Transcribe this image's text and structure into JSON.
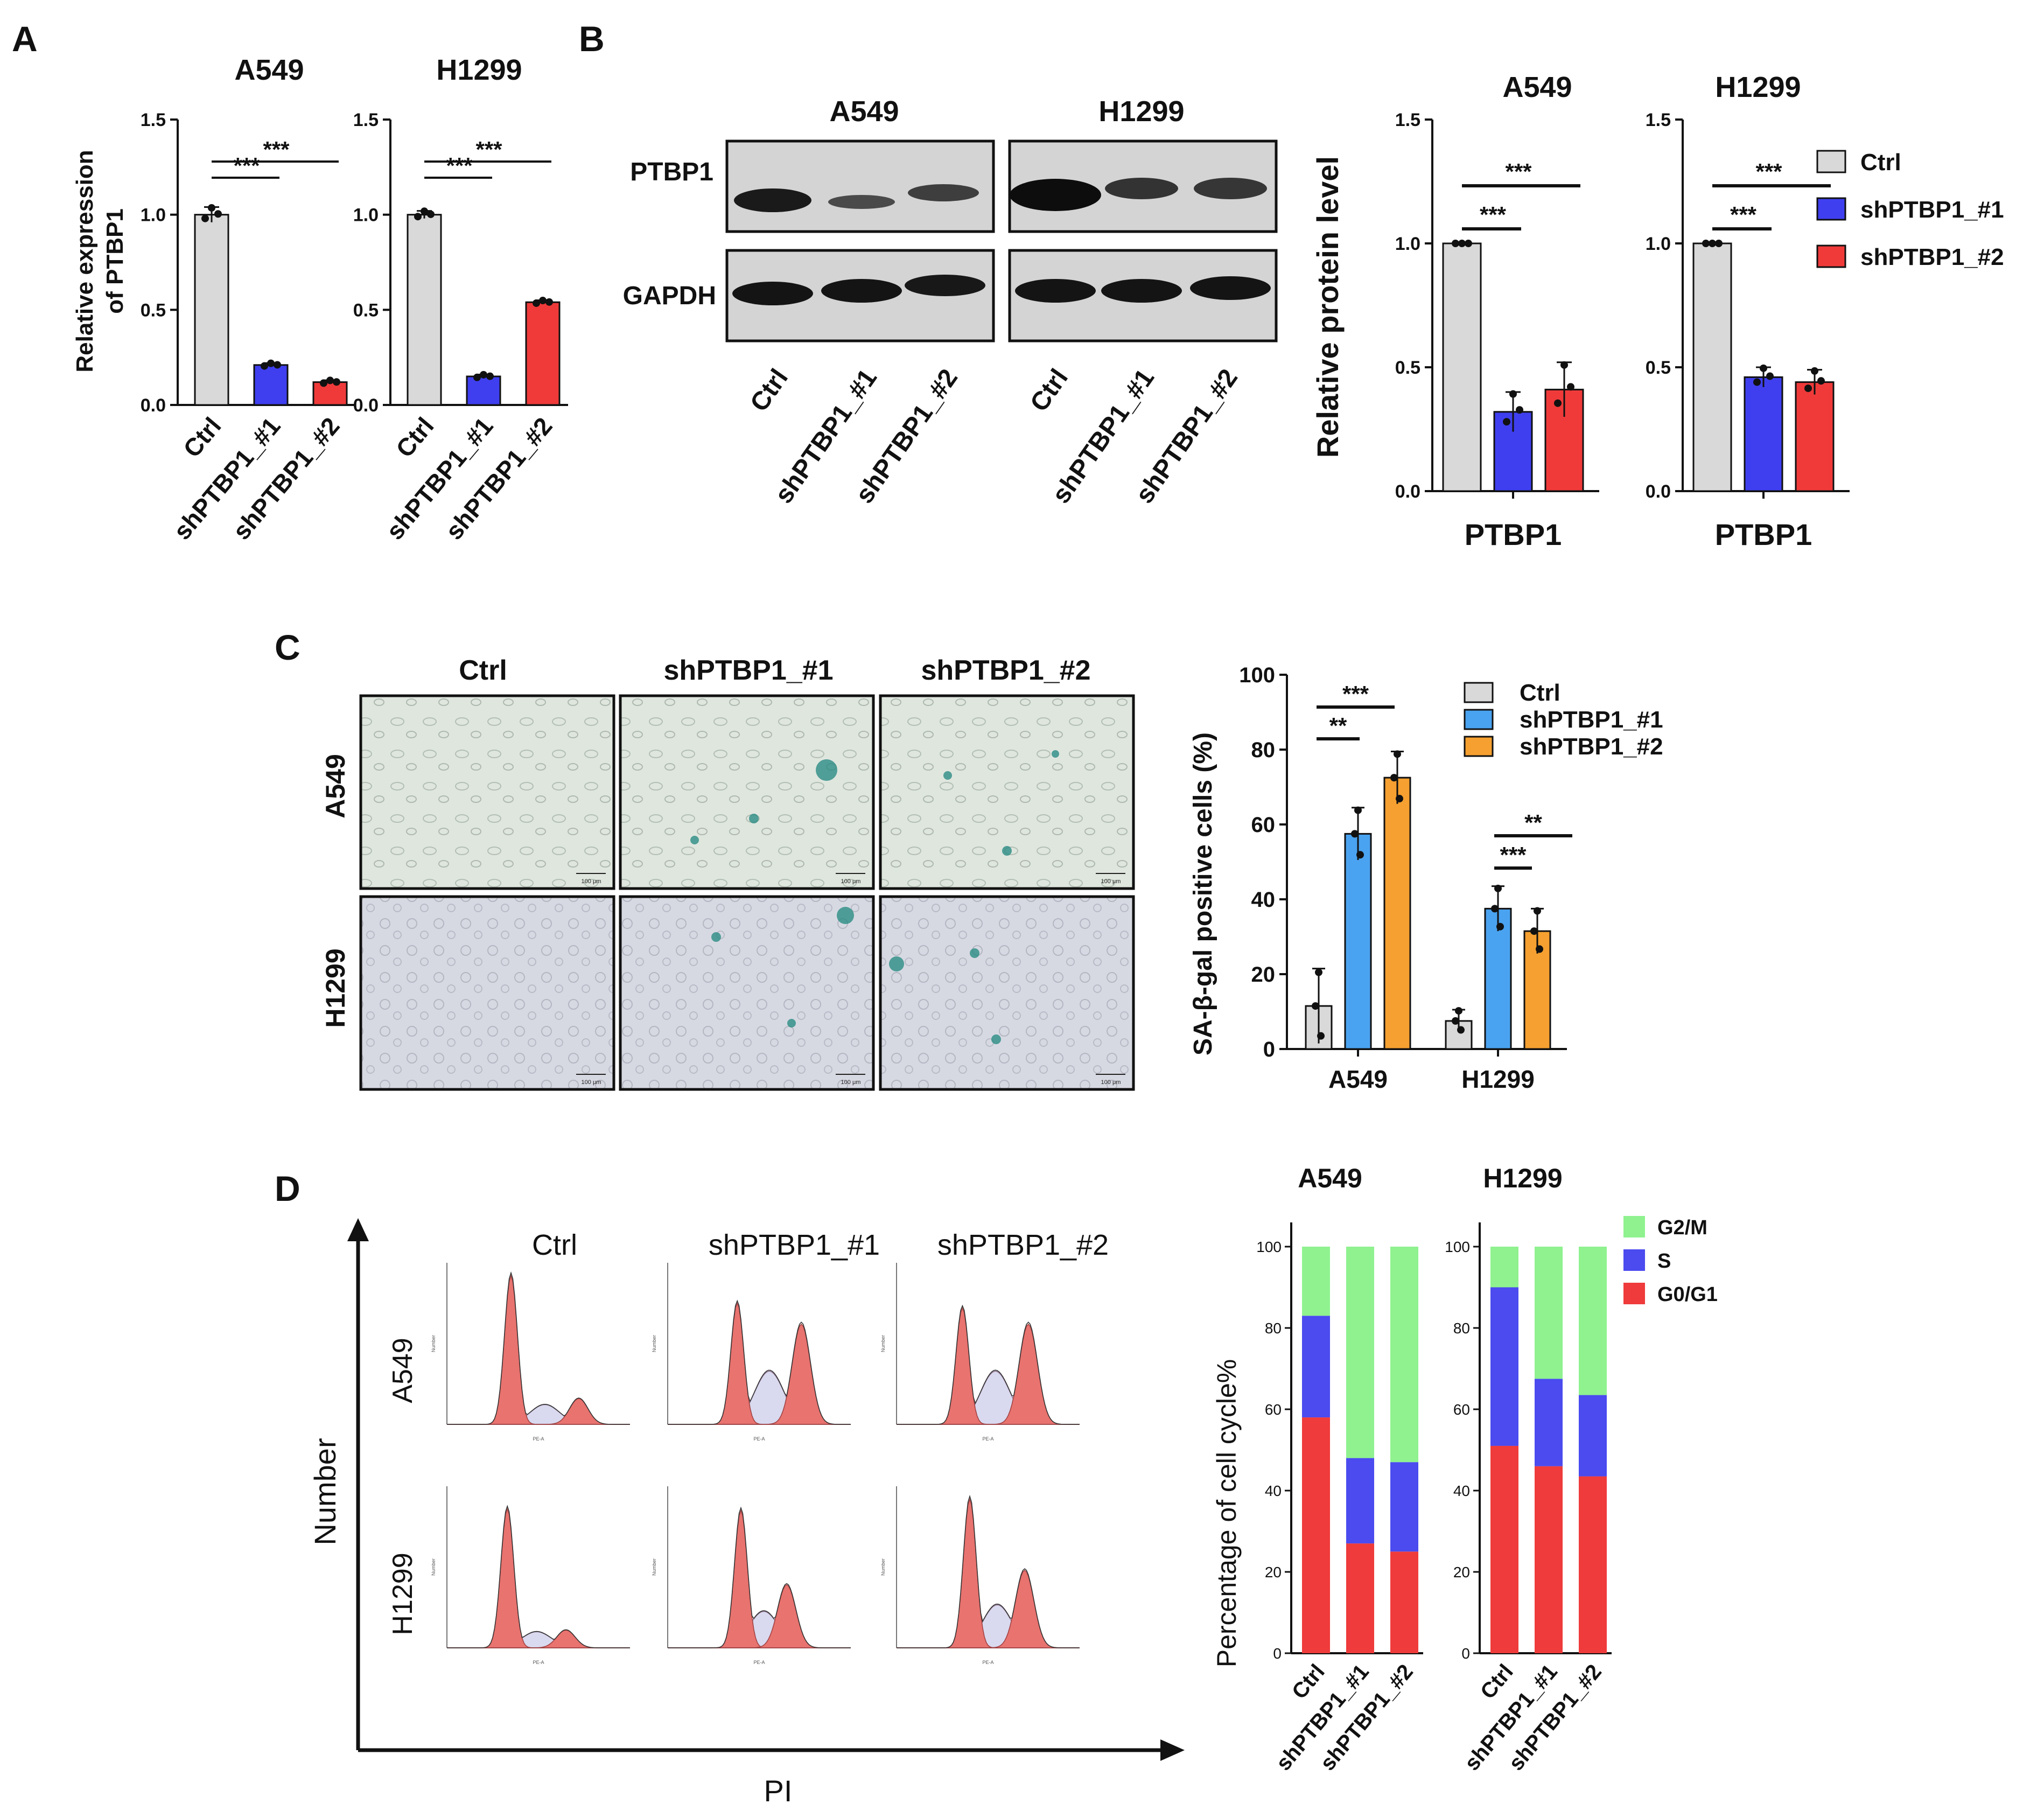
{
  "panel_letters": [
    "A",
    "B",
    "C",
    "D"
  ],
  "groups": [
    "Ctrl",
    "shPTBP1_#1",
    "shPTBP1_#2"
  ],
  "colors": {
    "ctrl": "#d9d9d9",
    "sh1_dark": "#3f3ff0",
    "sh2_red": "#f03a3a",
    "sh1_light": "#4aa3f0",
    "sh2_orange": "#f5a030",
    "g2m": "#8ff28f",
    "s": "#4b4bef",
    "g0g1": "#ef3b3b",
    "flow_fill": "#e8736f"
  },
  "panelA": {
    "ylabel_line1": "Relative expression",
    "ylabel_line2": "of PTBP1",
    "yticks": [
      "0.0",
      "0.5",
      "1.0",
      "1.5"
    ],
    "charts": [
      {
        "title": "A549",
        "values": [
          1.0,
          0.21,
          0.12
        ],
        "errors": [
          0.04,
          0.01,
          0.01
        ],
        "sig": [
          "***",
          "***"
        ]
      },
      {
        "title": "H1299",
        "values": [
          1.0,
          0.15,
          0.54
        ],
        "errors": [
          0.02,
          0.01,
          0.01
        ],
        "sig": [
          "***",
          "***"
        ]
      }
    ]
  },
  "panelB": {
    "blot_cells": [
      "A549",
      "H1299"
    ],
    "blot_rows": [
      "PTBP1",
      "GAPDH"
    ],
    "ylabel": "Relative protein level",
    "yticks": [
      "0.0",
      "0.5",
      "1.0",
      "1.5"
    ],
    "xlabel": "PTBP1",
    "charts": [
      {
        "title": "A549",
        "values": [
          1.0,
          0.32,
          0.41
        ],
        "errors": [
          0.0,
          0.08,
          0.11
        ],
        "sig": [
          "***",
          "***"
        ]
      },
      {
        "title": "H1299",
        "values": [
          1.0,
          0.46,
          0.44
        ],
        "errors": [
          0.0,
          0.04,
          0.05
        ],
        "sig": [
          "***",
          "***"
        ]
      }
    ],
    "legend": [
      "Ctrl",
      "shPTBP1_#1",
      "shPTBP1_#2"
    ]
  },
  "panelC": {
    "micro_cols": [
      "Ctrl",
      "shPTBP1_#1",
      "shPTBP1_#2"
    ],
    "micro_rows": [
      "A549",
      "H1299"
    ],
    "scalebar": "100 μm",
    "ylabel": "SA-β-gal positive cells (%)",
    "yticks": [
      "0",
      "20",
      "40",
      "60",
      "80",
      "100"
    ],
    "categories": [
      "A549",
      "H1299"
    ],
    "series": [
      {
        "name": "Ctrl",
        "values": [
          11.5,
          7.5
        ],
        "errors": [
          10,
          3
        ]
      },
      {
        "name": "shPTBP1_#1",
        "values": [
          57.5,
          37.5
        ],
        "errors": [
          7,
          6
        ]
      },
      {
        "name": "shPTBP1_#2",
        "values": [
          72.5,
          31.5
        ],
        "errors": [
          7,
          6
        ]
      }
    ],
    "sig": [
      {
        "label": "**"
      },
      {
        "label": "***"
      },
      {
        "label": "***"
      },
      {
        "label": "**"
      }
    ]
  },
  "panelD": {
    "flow_cols": [
      "Ctrl",
      "shPTBP1_#1",
      "shPTBP1_#2"
    ],
    "flow_rows": [
      "A549",
      "H1299"
    ],
    "xaxis_label": "PI",
    "yaxis_label": "Number",
    "flow_xlabel": "PE-A",
    "flow_ylabel": "Number",
    "ylabel": "Percentage of cell cycle%",
    "yticks": [
      "0",
      "20",
      "40",
      "60",
      "80",
      "100"
    ],
    "legend": [
      "G2/M",
      "S",
      "G0/G1"
    ],
    "charts": [
      {
        "title": "A549",
        "g0g1": [
          58,
          27,
          25
        ],
        "s": [
          25,
          21,
          22
        ],
        "g2m": [
          17,
          52,
          53
        ]
      },
      {
        "title": "H1299",
        "g0g1": [
          51,
          46,
          43.5
        ],
        "s": [
          39,
          21.5,
          20
        ],
        "g2m": [
          10,
          32.5,
          36.5
        ]
      }
    ]
  },
  "chart_data": [
    {
      "type": "bar",
      "title": "A549",
      "categories": [
        "Ctrl",
        "shPTBP1_#1",
        "shPTBP1_#2"
      ],
      "values": [
        1.0,
        0.21,
        0.12
      ],
      "ylabel": "Relative expression of PTBP1",
      "ylim": [
        0,
        1.5
      ]
    },
    {
      "type": "bar",
      "title": "H1299",
      "categories": [
        "Ctrl",
        "shPTBP1_#1",
        "shPTBP1_#2"
      ],
      "values": [
        1.0,
        0.15,
        0.54
      ],
      "ylabel": "Relative expression of PTBP1",
      "ylim": [
        0,
        1.5
      ]
    },
    {
      "type": "bar",
      "title": "A549",
      "categories": [
        "PTBP1"
      ],
      "series": [
        {
          "name": "Ctrl",
          "values": [
            1.0
          ]
        },
        {
          "name": "shPTBP1_#1",
          "values": [
            0.32
          ]
        },
        {
          "name": "shPTBP1_#2",
          "values": [
            0.41
          ]
        }
      ],
      "ylabel": "Relative protein level",
      "ylim": [
        0,
        1.5
      ]
    },
    {
      "type": "bar",
      "title": "H1299",
      "categories": [
        "PTBP1"
      ],
      "series": [
        {
          "name": "Ctrl",
          "values": [
            1.0
          ]
        },
        {
          "name": "shPTBP1_#1",
          "values": [
            0.46
          ]
        },
        {
          "name": "shPTBP1_#2",
          "values": [
            0.44
          ]
        }
      ],
      "ylabel": "Relative protein level",
      "ylim": [
        0,
        1.5
      ]
    },
    {
      "type": "bar",
      "categories": [
        "A549",
        "H1299"
      ],
      "series": [
        {
          "name": "Ctrl",
          "values": [
            11.5,
            7.5
          ]
        },
        {
          "name": "shPTBP1_#1",
          "values": [
            57.5,
            37.5
          ]
        },
        {
          "name": "shPTBP1_#2",
          "values": [
            72.5,
            31.5
          ]
        }
      ],
      "ylabel": "SA-β-gal positive cells (%)",
      "ylim": [
        0,
        100
      ]
    },
    {
      "type": "bar",
      "title": "A549",
      "categories": [
        "Ctrl",
        "shPTBP1_#1",
        "shPTBP1_#2"
      ],
      "series": [
        {
          "name": "G0/G1",
          "values": [
            58,
            27,
            25
          ]
        },
        {
          "name": "S",
          "values": [
            25,
            21,
            22
          ]
        },
        {
          "name": "G2/M",
          "values": [
            17,
            52,
            53
          ]
        }
      ],
      "ylabel": "Percentage of cell cycle%",
      "ylim": [
        0,
        100
      ],
      "stacked": true
    },
    {
      "type": "bar",
      "title": "H1299",
      "categories": [
        "Ctrl",
        "shPTBP1_#1",
        "shPTBP1_#2"
      ],
      "series": [
        {
          "name": "G0/G1",
          "values": [
            51,
            46,
            43.5
          ]
        },
        {
          "name": "S",
          "values": [
            39,
            21.5,
            20
          ]
        },
        {
          "name": "G2/M",
          "values": [
            10,
            32.5,
            36.5
          ]
        }
      ],
      "ylabel": "Percentage of cell cycle%",
      "ylim": [
        0,
        100
      ],
      "stacked": true
    }
  ]
}
